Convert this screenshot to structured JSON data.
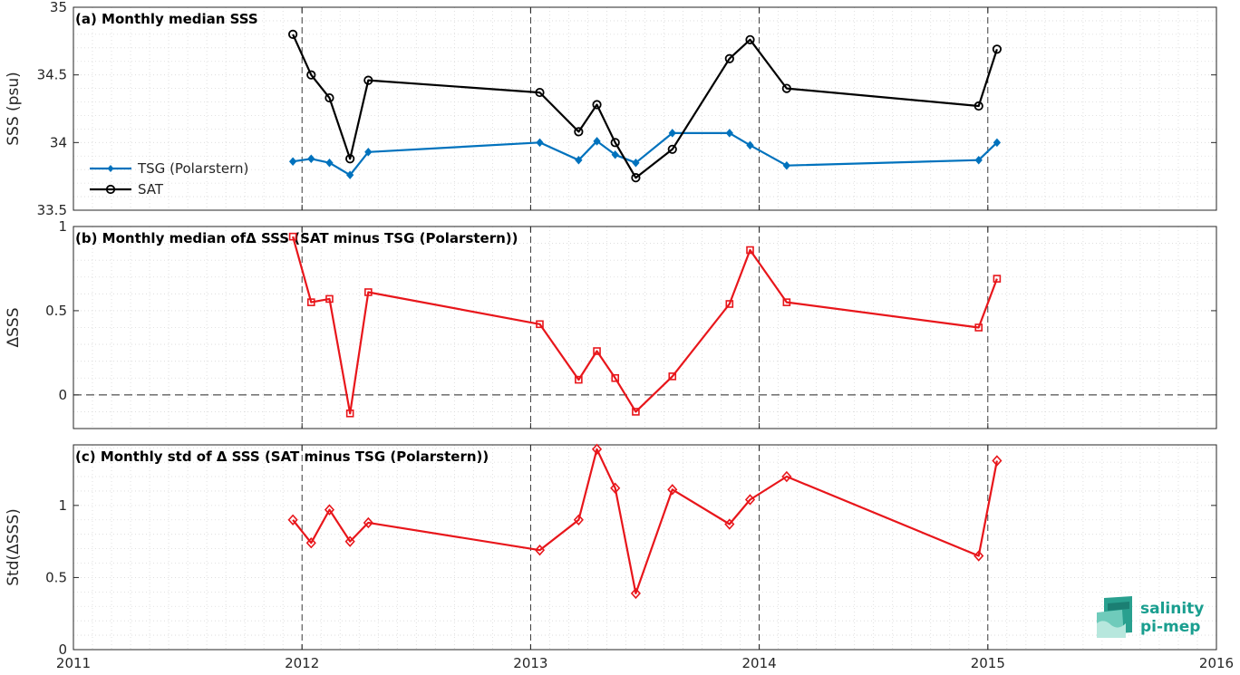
{
  "chart_data": [
    {
      "type": "line",
      "panel": "a",
      "title": "(a) Monthly median SSS",
      "xlabel": "",
      "ylabel": "SSS (psu)",
      "xlim": [
        2011,
        2016
      ],
      "ylim": [
        33.5,
        35
      ],
      "yticks": [
        "33.5",
        "34",
        "34.5",
        "35"
      ],
      "grid": true,
      "legend_placement": "lower-left",
      "series": [
        {
          "name": "TSG (Polarstern)",
          "color": "#0072BD",
          "marker": "dot",
          "x": [
            2011.96,
            2012.04,
            2012.12,
            2012.21,
            2012.29,
            2013.04,
            2013.21,
            2013.29,
            2013.37,
            2013.46,
            2013.62,
            2013.87,
            2013.96,
            2014.12,
            2014.96,
            2015.04
          ],
          "y": [
            33.86,
            33.88,
            33.85,
            33.76,
            33.93,
            34.0,
            33.87,
            34.01,
            33.91,
            33.85,
            34.07,
            34.07,
            33.98,
            33.83,
            33.87,
            34.0
          ]
        },
        {
          "name": "SAT",
          "color": "#000000",
          "marker": "circle",
          "x": [
            2011.96,
            2012.04,
            2012.12,
            2012.21,
            2012.29,
            2013.04,
            2013.21,
            2013.29,
            2013.37,
            2013.46,
            2013.62,
            2013.87,
            2013.96,
            2014.12,
            2014.96,
            2015.04
          ],
          "y": [
            34.8,
            34.5,
            34.33,
            33.88,
            34.46,
            34.37,
            34.08,
            34.28,
            34.0,
            33.74,
            33.95,
            34.62,
            34.76,
            34.4,
            34.27,
            34.69
          ]
        }
      ]
    },
    {
      "type": "line",
      "panel": "b",
      "title": "(b) Monthly median ofΔ SSS (SAT minus TSG (Polarstern))",
      "xlabel": "",
      "ylabel": "ΔSSS",
      "xlim": [
        2011,
        2016
      ],
      "ylim": [
        -0.2,
        1
      ],
      "yticks": [
        "0",
        "0.5",
        "1"
      ],
      "grid": true,
      "zero_line": true,
      "series": [
        {
          "name": "",
          "color": "#E8161B",
          "marker": "square",
          "x": [
            2011.96,
            2012.04,
            2012.12,
            2012.21,
            2012.29,
            2013.04,
            2013.21,
            2013.29,
            2013.37,
            2013.46,
            2013.62,
            2013.87,
            2013.96,
            2014.12,
            2014.96,
            2015.04
          ],
          "y": [
            0.94,
            0.55,
            0.57,
            -0.11,
            0.61,
            0.42,
            0.09,
            0.26,
            0.1,
            -0.1,
            0.11,
            0.54,
            0.86,
            0.55,
            0.4,
            0.69
          ]
        }
      ]
    },
    {
      "type": "line",
      "panel": "c",
      "title": "(c) Monthly std of Δ SSS (SAT minus TSG (Polarstern))",
      "xlabel": "",
      "ylabel": "Std(ΔSSS)",
      "xlim": [
        2011,
        2016
      ],
      "ylim": [
        0,
        1.42
      ],
      "yticks": [
        "0",
        "0.5",
        "1"
      ],
      "xticks": [
        "2011",
        "2012",
        "2013",
        "2014",
        "2015",
        "2016"
      ],
      "grid": true,
      "series": [
        {
          "name": "",
          "color": "#E8161B",
          "marker": "diamond",
          "x": [
            2011.96,
            2012.04,
            2012.12,
            2012.21,
            2012.29,
            2013.04,
            2013.21,
            2013.29,
            2013.37,
            2013.46,
            2013.62,
            2013.87,
            2013.96,
            2014.12,
            2014.96,
            2015.04
          ],
          "y": [
            0.9,
            0.74,
            0.97,
            0.75,
            0.88,
            0.69,
            0.9,
            1.39,
            1.12,
            0.39,
            1.11,
            0.87,
            1.04,
            1.2,
            0.65,
            1.31
          ]
        }
      ]
    }
  ],
  "logo": {
    "line1": "salinity",
    "line2": "pi-mep"
  }
}
